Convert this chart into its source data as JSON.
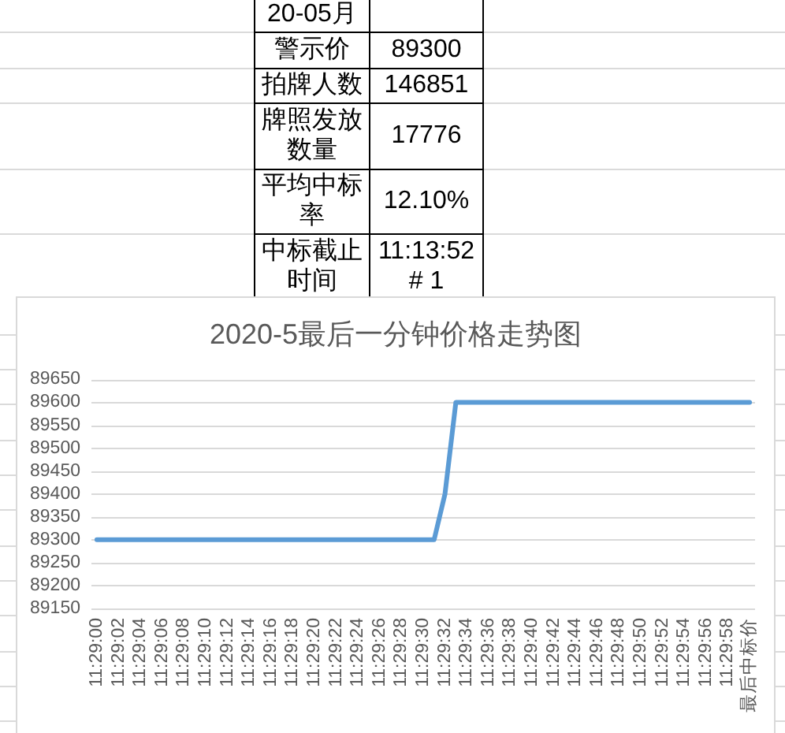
{
  "chart_data": {
    "type": "line",
    "title": "2020-5最后一分钟价格走势图",
    "categories": [
      "11:29:00",
      null,
      "11:29:02",
      null,
      "11:29:04",
      null,
      "11:29:06",
      null,
      "11:29:08",
      null,
      "11:29:10",
      null,
      "11:29:12",
      null,
      "11:29:14",
      null,
      "11:29:16",
      null,
      "11:29:18",
      null,
      "11:29:20",
      null,
      "11:29:22",
      null,
      "11:29:24",
      null,
      "11:29:26",
      null,
      "11:29:28",
      null,
      "11:29:30",
      null,
      "11:29:32",
      null,
      "11:29:34",
      null,
      "11:29:36",
      null,
      "11:29:38",
      null,
      "11:29:40",
      null,
      "11:29:42",
      null,
      "11:29:44",
      null,
      "11:29:46",
      null,
      "11:29:48",
      null,
      "11:29:50",
      null,
      "11:29:52",
      null,
      "11:29:54",
      null,
      "11:29:56",
      null,
      "11:29:58",
      null,
      "最后中标价"
    ],
    "series": [
      {
        "color": "#5b9bd5",
        "values": [
          89300,
          89300,
          89300,
          89300,
          89300,
          89300,
          89300,
          89300,
          89300,
          89300,
          89300,
          89300,
          89300,
          89300,
          89300,
          89300,
          89300,
          89300,
          89300,
          89300,
          89300,
          89300,
          89300,
          89300,
          89300,
          89300,
          89300,
          89300,
          89300,
          89300,
          89300,
          89300,
          89400,
          89600,
          89600,
          89600,
          89600,
          89600,
          89600,
          89600,
          89600,
          89600,
          89600,
          89600,
          89600,
          89600,
          89600,
          89600,
          89600,
          89600,
          89600,
          89600,
          89600,
          89600,
          89600,
          89600,
          89600,
          89600,
          89600,
          89600,
          89600
        ]
      }
    ],
    "ylim": [
      89150,
      89650
    ],
    "yticks": [
      89150,
      89200,
      89250,
      89300,
      89350,
      89400,
      89450,
      89500,
      89550,
      89600,
      89650
    ],
    "grid": "y",
    "line_style": "solid",
    "annotations": [
      "20-05月",
      "警示价",
      "89300",
      "拍牌人数",
      "146851",
      "牌照发放数量",
      "17776",
      "平均中标率",
      "12.10%",
      "中标截止时间",
      "11:13:52 # 1"
    ]
  }
}
